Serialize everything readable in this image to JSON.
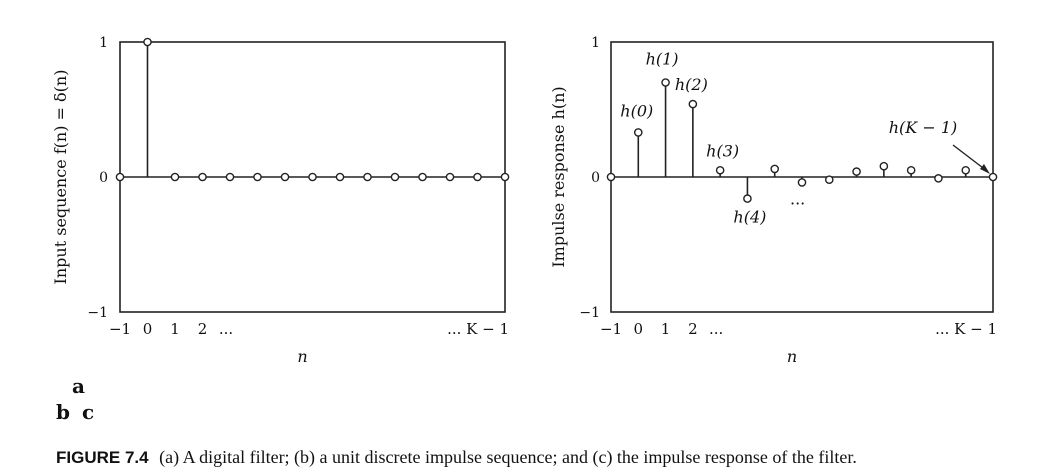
{
  "panels": {
    "a": "a",
    "b": "b",
    "c": "c"
  },
  "caption": {
    "label": "FIGURE 7.4",
    "text": "(a) A digital filter; (b) a unit discrete impulse sequence; and (c) the impulse response of the filter."
  },
  "chart_data": [
    {
      "type": "stem",
      "ylabel": "Input sequence f(n) = δ(n)",
      "xlabel": "n",
      "yticks": [
        "1",
        "0",
        "−1"
      ],
      "xticklabels": [
        "−1",
        "0",
        "1",
        "2",
        "...",
        "... K − 1"
      ],
      "ylim": [
        -1,
        1
      ],
      "x": [
        -1,
        0,
        1,
        2,
        3,
        4,
        5,
        6,
        7,
        8,
        9,
        10,
        11,
        12,
        13
      ],
      "values": [
        0,
        1,
        0,
        0,
        0,
        0,
        0,
        0,
        0,
        0,
        0,
        0,
        0,
        0,
        0
      ],
      "annotations": []
    },
    {
      "type": "stem",
      "ylabel": "Impulse response h(n)",
      "xlabel": "n",
      "yticks": [
        "1",
        "0",
        "−1"
      ],
      "xticklabels": [
        "−1",
        "0",
        "1",
        "2",
        "...",
        "... K − 1"
      ],
      "ylim": [
        -1,
        1
      ],
      "x": [
        -1,
        0,
        1,
        2,
        3,
        4,
        5,
        6,
        7,
        8,
        9,
        10,
        11,
        12,
        13
      ],
      "values": [
        0,
        0.33,
        0.7,
        0.54,
        0.05,
        -0.16,
        0.06,
        -0.04,
        -0.02,
        0.04,
        0.08,
        0.05,
        -0.01,
        0.05,
        0
      ],
      "annotations": [
        {
          "text": "h(0)",
          "index": 1
        },
        {
          "text": "h(1)",
          "index": 2
        },
        {
          "text": "h(2)",
          "index": 3
        },
        {
          "text": "h(3)",
          "index": 4
        },
        {
          "text": "h(4)",
          "index": 5
        },
        {
          "text": "h(K − 1)",
          "index": 14
        },
        {
          "text": "...",
          "index": 7
        }
      ]
    }
  ]
}
